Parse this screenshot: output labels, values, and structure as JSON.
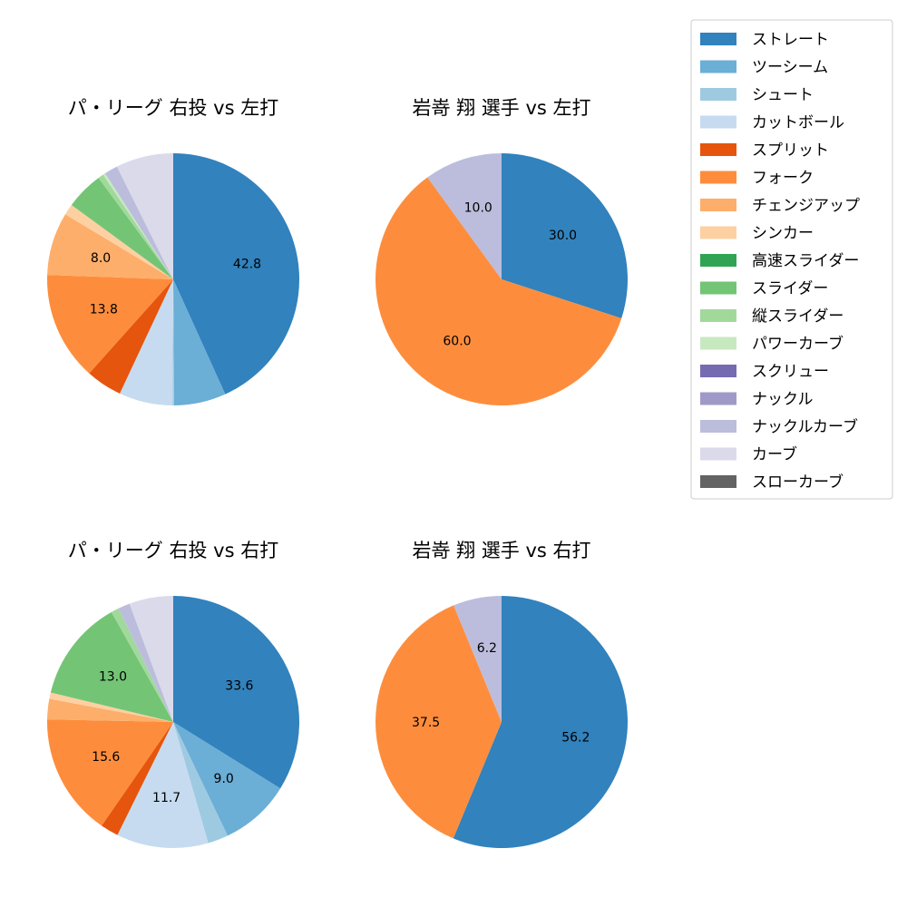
{
  "legend": {
    "items": [
      {
        "label": "ストレート",
        "color": "#3182bd"
      },
      {
        "label": "ツーシーム",
        "color": "#6baed6"
      },
      {
        "label": "シュート",
        "color": "#9ecae1"
      },
      {
        "label": "カットボール",
        "color": "#c6dbef"
      },
      {
        "label": "スプリット",
        "color": "#e6550d"
      },
      {
        "label": "フォーク",
        "color": "#fd8d3c"
      },
      {
        "label": "チェンジアップ",
        "color": "#fdae6b"
      },
      {
        "label": "シンカー",
        "color": "#fdd0a2"
      },
      {
        "label": "高速スライダー",
        "color": "#31a354"
      },
      {
        "label": "スライダー",
        "color": "#74c476"
      },
      {
        "label": "縦スライダー",
        "color": "#a1d99b"
      },
      {
        "label": "パワーカーブ",
        "color": "#c7e9c0"
      },
      {
        "label": "スクリュー",
        "color": "#756bb1"
      },
      {
        "label": "ナックル",
        "color": "#9e9ac8"
      },
      {
        "label": "ナックルカーブ",
        "color": "#bcbddc"
      },
      {
        "label": "カーブ",
        "color": "#dadaeb"
      },
      {
        "label": "スローカーブ",
        "color": "#636363"
      }
    ]
  },
  "chart_data": [
    {
      "type": "pie",
      "title": "パ・リーグ 右投 vs 左打",
      "slices": [
        {
          "label": "ストレート",
          "value": 42.8,
          "color": "#3182bd",
          "show_label": true
        },
        {
          "label": "ツーシーム",
          "value": 6.6,
          "color": "#6baed6",
          "show_label": false
        },
        {
          "label": "シュート",
          "value": 0.2,
          "color": "#9ecae1",
          "show_label": false
        },
        {
          "label": "カットボール",
          "value": 6.8,
          "color": "#c6dbef",
          "show_label": false
        },
        {
          "label": "スプリット",
          "value": 4.6,
          "color": "#e6550d",
          "show_label": false
        },
        {
          "label": "フォーク",
          "value": 13.8,
          "color": "#fd8d3c",
          "show_label": true
        },
        {
          "label": "チェンジアップ",
          "value": 8.0,
          "color": "#fdae6b",
          "show_label": true
        },
        {
          "label": "シンカー",
          "value": 1.4,
          "color": "#fdd0a2",
          "show_label": false
        },
        {
          "label": "スライダー",
          "value": 4.8,
          "color": "#74c476",
          "show_label": false
        },
        {
          "label": "縦スライダー",
          "value": 0.7,
          "color": "#a1d99b",
          "show_label": false
        },
        {
          "label": "パワーカーブ",
          "value": 0.3,
          "color": "#c7e9c0",
          "show_label": false
        },
        {
          "label": "ナックルカーブ",
          "value": 1.7,
          "color": "#bcbddc",
          "show_label": false
        },
        {
          "label": "カーブ",
          "value": 7.3,
          "color": "#dadaeb",
          "show_label": false
        }
      ]
    },
    {
      "type": "pie",
      "title": "岩嵜 翔 選手 vs 左打",
      "slices": [
        {
          "label": "ストレート",
          "value": 30.0,
          "color": "#3182bd",
          "show_label": true
        },
        {
          "label": "フォーク",
          "value": 60.0,
          "color": "#fd8d3c",
          "show_label": true
        },
        {
          "label": "ナックルカーブ",
          "value": 10.0,
          "color": "#bcbddc",
          "show_label": true
        }
      ]
    },
    {
      "type": "pie",
      "title": "パ・リーグ 右投 vs 右打",
      "slices": [
        {
          "label": "ストレート",
          "value": 33.6,
          "color": "#3182bd",
          "show_label": true
        },
        {
          "label": "ツーシーム",
          "value": 9.0,
          "color": "#6baed6",
          "show_label": true
        },
        {
          "label": "シュート",
          "value": 2.6,
          "color": "#9ecae1",
          "show_label": false
        },
        {
          "label": "カットボール",
          "value": 11.7,
          "color": "#c6dbef",
          "show_label": true
        },
        {
          "label": "スプリット",
          "value": 2.3,
          "color": "#e6550d",
          "show_label": false
        },
        {
          "label": "フォーク",
          "value": 15.6,
          "color": "#fd8d3c",
          "show_label": true
        },
        {
          "label": "チェンジアップ",
          "value": 2.6,
          "color": "#fdae6b",
          "show_label": false
        },
        {
          "label": "シンカー",
          "value": 0.8,
          "color": "#fdd0a2",
          "show_label": false
        },
        {
          "label": "スライダー",
          "value": 13.0,
          "color": "#74c476",
          "show_label": true
        },
        {
          "label": "縦スライダー",
          "value": 1.0,
          "color": "#a1d99b",
          "show_label": false
        },
        {
          "label": "ナックルカーブ",
          "value": 1.5,
          "color": "#bcbddc",
          "show_label": false
        },
        {
          "label": "カーブ",
          "value": 5.6,
          "color": "#dadaeb",
          "show_label": false
        }
      ]
    },
    {
      "type": "pie",
      "title": "岩嵜 翔 選手 vs 右打",
      "slices": [
        {
          "label": "ストレート",
          "value": 56.2,
          "color": "#3182bd",
          "show_label": true
        },
        {
          "label": "フォーク",
          "value": 37.5,
          "color": "#fd8d3c",
          "show_label": true
        },
        {
          "label": "ナックルカーブ",
          "value": 6.2,
          "color": "#bcbddc",
          "show_label": true
        }
      ]
    }
  ]
}
